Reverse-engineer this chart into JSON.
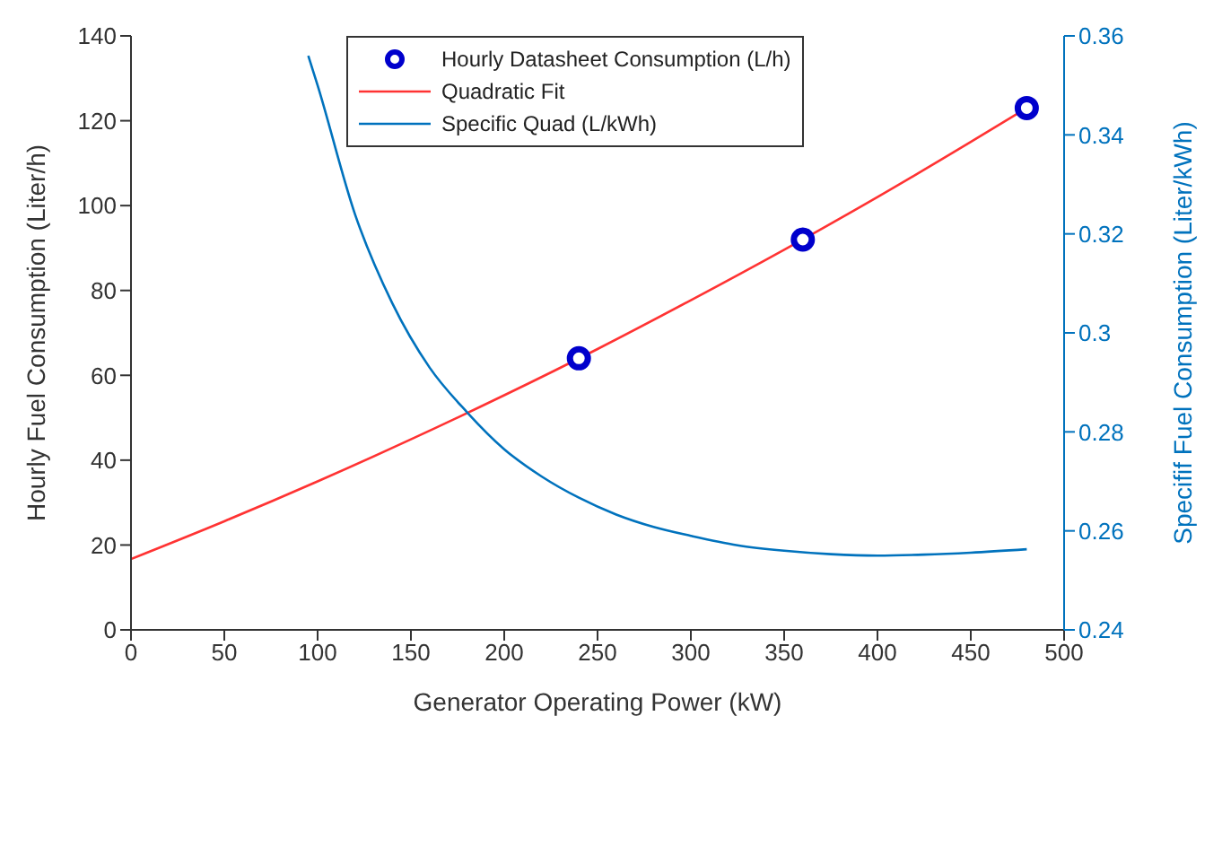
{
  "chart_data": {
    "type": "line",
    "xlabel": "Generator Operating Power (kW)",
    "ylabel": "Hourly Fuel Consumption (Liter/h)",
    "y2label": "Specifif Fuel Consumption (Liter/kWh)",
    "xlim": [
      0,
      500
    ],
    "xticks": [
      0,
      50,
      100,
      150,
      200,
      250,
      300,
      350,
      400,
      450,
      500
    ],
    "ylim": [
      0,
      140
    ],
    "yticks": [
      0,
      20,
      40,
      60,
      80,
      100,
      120,
      140
    ],
    "y2lim": [
      0.24,
      0.36
    ],
    "y2ticks": [
      0.24,
      0.26,
      0.28,
      0.3,
      0.32,
      0.34,
      0.36
    ],
    "grid": false,
    "legend": "top",
    "series": [
      {
        "name": "Hourly Datasheet Consumption (L/h)",
        "type": "scatter",
        "marker": "circle",
        "color": "#0000cc",
        "x": [
          240,
          360,
          480
        ],
        "values": [
          64,
          92,
          123
        ]
      },
      {
        "name": "Quadratic Fit",
        "marker": "none",
        "color": "#ff3333",
        "x": [
          0,
          50,
          100,
          150,
          200,
          250,
          300,
          350,
          400,
          450,
          480
        ],
        "values": [
          16.7,
          25.6,
          35.0,
          44.9,
          55.3,
          66.2,
          77.7,
          89.6,
          102.0,
          115.0,
          123.0
        ]
      },
      {
        "name": "Specific Quad (L/kWh)",
        "marker": "none",
        "axis": "y2",
        "color": "#0072bd",
        "x": [
          95,
          100,
          120,
          140,
          160,
          180,
          200,
          220,
          240,
          260,
          280,
          300,
          325,
          350,
          375,
          400,
          425,
          450,
          480
        ],
        "values": [
          0.356,
          0.35,
          0.324,
          0.306,
          0.293,
          0.284,
          0.2765,
          0.271,
          0.2667,
          0.2633,
          0.2608,
          0.259,
          0.2571,
          0.256,
          0.2553,
          0.255,
          0.2552,
          0.2556,
          0.2563
        ]
      }
    ]
  }
}
